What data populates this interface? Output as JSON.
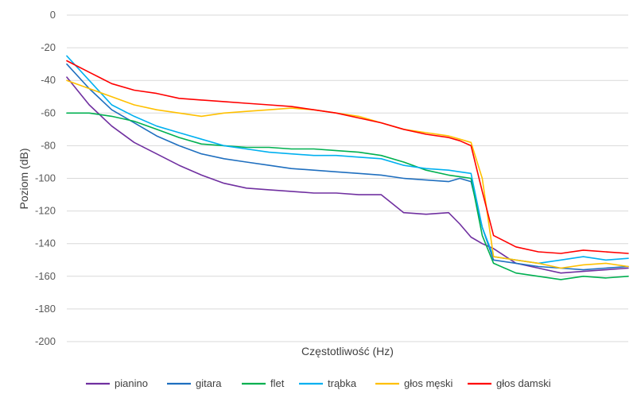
{
  "chart_data": {
    "type": "line",
    "xlabel": "Częstotliwość (Hz)",
    "ylabel": "Poziom (dB)",
    "ylim": [
      -200,
      0
    ],
    "yticks": [
      0,
      -20,
      -40,
      -60,
      -80,
      -100,
      -120,
      -140,
      -160,
      -180,
      -200
    ],
    "grid": true,
    "legend": "bottom",
    "x": [
      0,
      0.04,
      0.08,
      0.12,
      0.16,
      0.2,
      0.24,
      0.28,
      0.32,
      0.36,
      0.4,
      0.44,
      0.48,
      0.52,
      0.56,
      0.6,
      0.64,
      0.68,
      0.7,
      0.72,
      0.74,
      0.76,
      0.8,
      0.84,
      0.88,
      0.92,
      0.96,
      1.0
    ],
    "series": [
      {
        "name": "pianino",
        "color": "#7030a0",
        "values": [
          -38,
          -55,
          -68,
          -78,
          -85,
          -92,
          -98,
          -103,
          -106,
          -107,
          -108,
          -109,
          -109,
          -110,
          -110,
          -121,
          -122,
          -121,
          -128,
          -136,
          -140,
          -143,
          -152,
          -155,
          -158,
          -157,
          -156,
          -155
        ]
      },
      {
        "name": "gitara",
        "color": "#1f6fbf",
        "values": [
          -30,
          -45,
          -58,
          -66,
          -74,
          -80,
          -85,
          -88,
          -90,
          -92,
          -94,
          -95,
          -96,
          -97,
          -98,
          -100,
          -101,
          -102,
          -100,
          -102,
          -130,
          -150,
          -152,
          -154,
          -155,
          -156,
          -155,
          -154
        ]
      },
      {
        "name": "flet",
        "color": "#00b050",
        "values": [
          -60,
          -60,
          -62,
          -65,
          -70,
          -75,
          -79,
          -80,
          -81,
          -81,
          -82,
          -82,
          -83,
          -84,
          -86,
          -90,
          -95,
          -98,
          -99,
          -100,
          -135,
          -152,
          -158,
          -160,
          -162,
          -160,
          -161,
          -160
        ]
      },
      {
        "name": "trąbka",
        "color": "#00b0f0",
        "values": [
          -25,
          -40,
          -55,
          -62,
          -68,
          -72,
          -76,
          -80,
          -82,
          -84,
          -85,
          -86,
          -86,
          -87,
          -88,
          -92,
          -94,
          -95,
          -96,
          -97,
          -130,
          -148,
          -150,
          -152,
          -150,
          -148,
          -150,
          -149
        ]
      },
      {
        "name": "głos męski",
        "color": "#ffc000",
        "values": [
          -40,
          -45,
          -50,
          -55,
          -58,
          -60,
          -62,
          -60,
          -59,
          -58,
          -57,
          -58,
          -60,
          -62,
          -66,
          -70,
          -72,
          -74,
          -76,
          -78,
          -100,
          -148,
          -150,
          -152,
          -155,
          -153,
          -152,
          -154
        ]
      },
      {
        "name": "głos damski",
        "color": "#ff0000",
        "values": [
          -28,
          -35,
          -42,
          -46,
          -48,
          -51,
          -52,
          -53,
          -54,
          -55,
          -56,
          -58,
          -60,
          -63,
          -66,
          -70,
          -73,
          -75,
          -77,
          -80,
          -108,
          -135,
          -142,
          -145,
          -146,
          -144,
          -145,
          -146
        ]
      }
    ]
  }
}
